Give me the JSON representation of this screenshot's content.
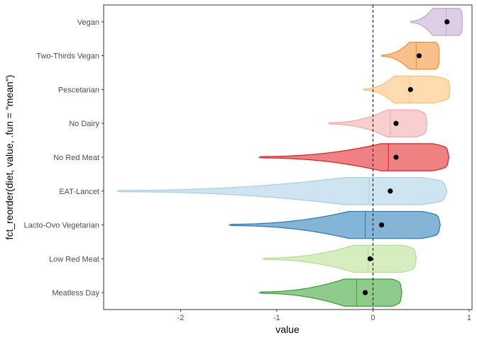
{
  "chart_data": {
    "type": "violin",
    "xlabel": "value",
    "ylabel": "fct_reorder(diet, value, .fun = \"mean\")",
    "xlim": [
      -2.8,
      1.03
    ],
    "x_ticks": [
      -2,
      -1,
      0,
      1
    ],
    "x_tick_labels": [
      "-2",
      "-1",
      "0",
      "1"
    ],
    "reference_line": {
      "x": 0,
      "style": "dashed"
    },
    "grid": false,
    "categories_top_to_bottom": [
      "Vegan",
      "Two-Thirds Vegan",
      "Pescetarian",
      "No Dairy",
      "No Red Meat",
      "EAT-Lancet",
      "Lacto-Ovo Vegetarian",
      "Low Red Meat",
      "Meatless Day"
    ],
    "series": [
      {
        "name": "Vegan",
        "color": "#c2a5cf",
        "min": 0.39,
        "max": 0.93,
        "median": 0.76,
        "mean": 0.77,
        "bulk": [
          0.62,
          0.9
        ]
      },
      {
        "name": "Two-Thirds Vegan",
        "color": "#f28e2b",
        "min": 0.09,
        "max": 0.69,
        "median": 0.45,
        "mean": 0.48,
        "bulk": [
          0.38,
          0.65
        ]
      },
      {
        "name": "Pescetarian",
        "color": "#fdbf6f",
        "min": -0.1,
        "max": 0.8,
        "median": 0.38,
        "mean": 0.39,
        "bulk": [
          0.22,
          0.62
        ]
      },
      {
        "name": "No Dairy",
        "color": "#f4a6a6",
        "min": -0.46,
        "max": 0.56,
        "median": 0.18,
        "mean": 0.24,
        "bulk": [
          0.15,
          0.45
        ]
      },
      {
        "name": "No Red Meat",
        "color": "#e31a1c",
        "min": -1.18,
        "max": 0.79,
        "median": 0.16,
        "mean": 0.24,
        "bulk": [
          0.08,
          0.62
        ]
      },
      {
        "name": "EAT-Lancet",
        "color": "#a6cee3",
        "min": -2.66,
        "max": 0.77,
        "median": -0.04,
        "mean": 0.18,
        "bulk": [
          -0.3,
          0.5
        ]
      },
      {
        "name": "Lacto-Ovo Vegetarian",
        "color": "#1f78b4",
        "min": -1.49,
        "max": 0.7,
        "median": -0.08,
        "mean": 0.09,
        "bulk": [
          -0.25,
          0.5
        ]
      },
      {
        "name": "Low Red Meat",
        "color": "#b2df8a",
        "min": -1.14,
        "max": 0.45,
        "median": -0.05,
        "mean": -0.03,
        "bulk": [
          -0.2,
          0.3
        ]
      },
      {
        "name": "Meatless Day",
        "color": "#33a02c",
        "min": -1.18,
        "max": 0.3,
        "median": -0.17,
        "mean": -0.08,
        "bulk": [
          -0.3,
          0.2
        ]
      }
    ]
  }
}
